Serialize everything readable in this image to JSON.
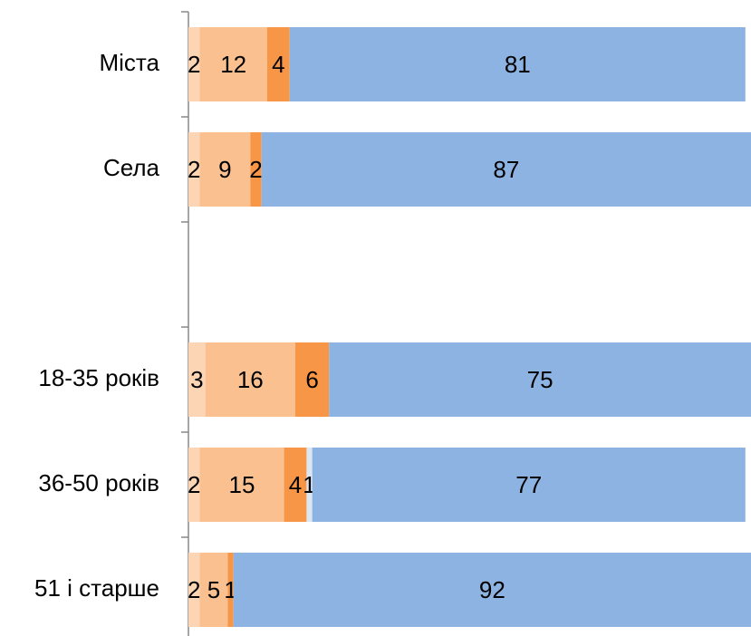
{
  "chart_data": {
    "type": "stacked-bar-horizontal",
    "categories": [
      "Міста",
      "Села",
      null,
      "18-35 років",
      "36-50 років",
      "51 і старше"
    ],
    "series": [
      {
        "color": "#fcd5b5",
        "values": [
          2,
          2,
          null,
          3,
          2,
          2
        ]
      },
      {
        "color": "#fac090",
        "values": [
          12,
          9,
          null,
          16,
          15,
          5
        ]
      },
      {
        "color": "#f79646",
        "values": [
          4,
          2,
          null,
          6,
          4,
          1
        ]
      },
      {
        "color": "#dce6f2",
        "values": [
          null,
          null,
          null,
          null,
          1,
          null
        ]
      },
      {
        "color": "#8db3e2",
        "values": [
          81,
          87,
          null,
          75,
          77,
          92
        ]
      }
    ],
    "xlim": [
      0,
      100
    ]
  }
}
